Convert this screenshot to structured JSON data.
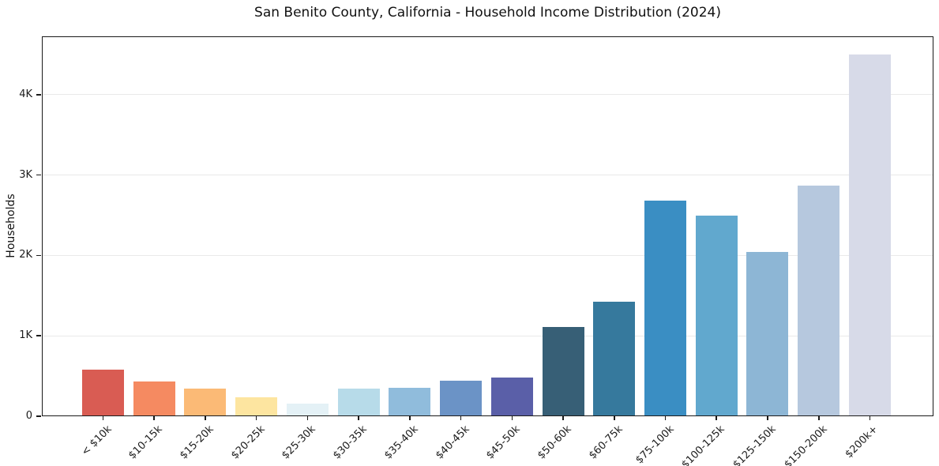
{
  "page": {
    "background": "#ffffff"
  },
  "chart_data": {
    "type": "bar",
    "title": "San Benito County, California - Household Income Distribution (2024)",
    "xlabel": "",
    "ylabel": "Households",
    "categories": [
      "< $10k",
      "$10-15k",
      "$15-20k",
      "$20-25k",
      "$25-30k",
      "$30-35k",
      "$35-40k",
      "$40-45k",
      "$45-50k",
      "$50-60k",
      "$60-75k",
      "$75-100k",
      "$100-125k",
      "$125-150k",
      "$150-200k",
      "$200k+"
    ],
    "values": [
      575,
      435,
      340,
      240,
      160,
      345,
      350,
      440,
      485,
      1115,
      1420,
      2680,
      2500,
      2045,
      2865,
      4500
    ],
    "bar_colors": [
      "#d95c53",
      "#f58a61",
      "#fbba76",
      "#fde5a0",
      "#e4f1f6",
      "#b7dbe9",
      "#90bcdc",
      "#6b93c6",
      "#5a5fa8",
      "#375f76",
      "#36799d",
      "#3a8ec3",
      "#61a8ce",
      "#8db6d5",
      "#b6c8de",
      "#d7dae8"
    ],
    "yticks": [
      {
        "label": "0",
        "value": 0
      },
      {
        "label": "1K",
        "value": 1000
      },
      {
        "label": "2K",
        "value": 2000
      },
      {
        "label": "3K",
        "value": 3000
      },
      {
        "label": "4K",
        "value": 4000
      }
    ],
    "ylim": [
      0,
      4725
    ],
    "grid": true,
    "legend": null
  },
  "style_colors": {
    "grid": "#e9e9e9",
    "spine": "#1a1a1a",
    "title_text": "#111111",
    "tick_text": "#1c1c1c"
  }
}
